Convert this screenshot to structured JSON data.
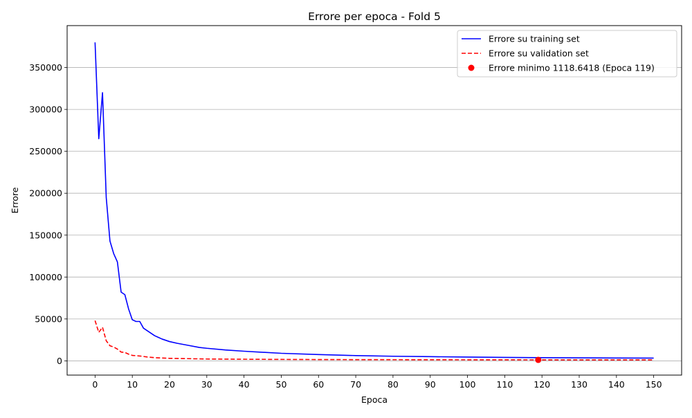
{
  "chart_data": {
    "type": "line",
    "title": "Errore per epoca - Fold 5",
    "xlabel": "Epoca",
    "ylabel": "Errore",
    "xlim": [
      -7.5,
      157.5
    ],
    "ylim": [
      -17000,
      400000
    ],
    "xticks": [
      0,
      10,
      20,
      30,
      40,
      50,
      60,
      70,
      80,
      90,
      100,
      110,
      120,
      130,
      140,
      150
    ],
    "yticks": [
      0,
      50000,
      100000,
      150000,
      200000,
      250000,
      300000,
      350000
    ],
    "grid": "horizontal",
    "legend_position": "top-right",
    "series": [
      {
        "name": "Errore su training set",
        "color": "#0000ff",
        "style": "solid",
        "x": [
          0,
          1,
          2,
          3,
          4,
          5,
          6,
          7,
          8,
          9,
          10,
          11,
          12,
          13,
          14,
          15,
          16,
          17,
          18,
          20,
          22,
          25,
          28,
          30,
          35,
          40,
          50,
          60,
          70,
          80,
          90,
          100,
          110,
          120,
          130,
          140,
          150
        ],
        "y": [
          380000,
          265000,
          320000,
          195000,
          143000,
          128000,
          118000,
          82000,
          79000,
          62000,
          49000,
          47000,
          47000,
          39000,
          36000,
          33000,
          30000,
          28000,
          26000,
          23000,
          21000,
          18500,
          16000,
          15000,
          13000,
          11500,
          9000,
          7500,
          6300,
          5500,
          5000,
          4500,
          4100,
          3800,
          3600,
          3400,
          3300
        ]
      },
      {
        "name": "Errore su validation set",
        "color": "#ff0000",
        "style": "dashed",
        "x": [
          0,
          1,
          2,
          3,
          4,
          5,
          6,
          7,
          8,
          9,
          10,
          12,
          14,
          16,
          18,
          20,
          25,
          30,
          40,
          50,
          60,
          70,
          80,
          90,
          100,
          110,
          120,
          130,
          140,
          150
        ],
        "y": [
          48000,
          34000,
          40000,
          24000,
          18000,
          16500,
          14000,
          10500,
          10000,
          8000,
          6500,
          5800,
          4600,
          3800,
          3400,
          3000,
          2600,
          2200,
          1900,
          1700,
          1550,
          1450,
          1380,
          1320,
          1260,
          1200,
          1150,
          1130,
          1120,
          1120
        ]
      }
    ],
    "marker": {
      "name": "Errore minimo 1118.6418 (Epoca 119)",
      "x": 119,
      "y": 1118.6418,
      "color": "#ff0000"
    }
  }
}
